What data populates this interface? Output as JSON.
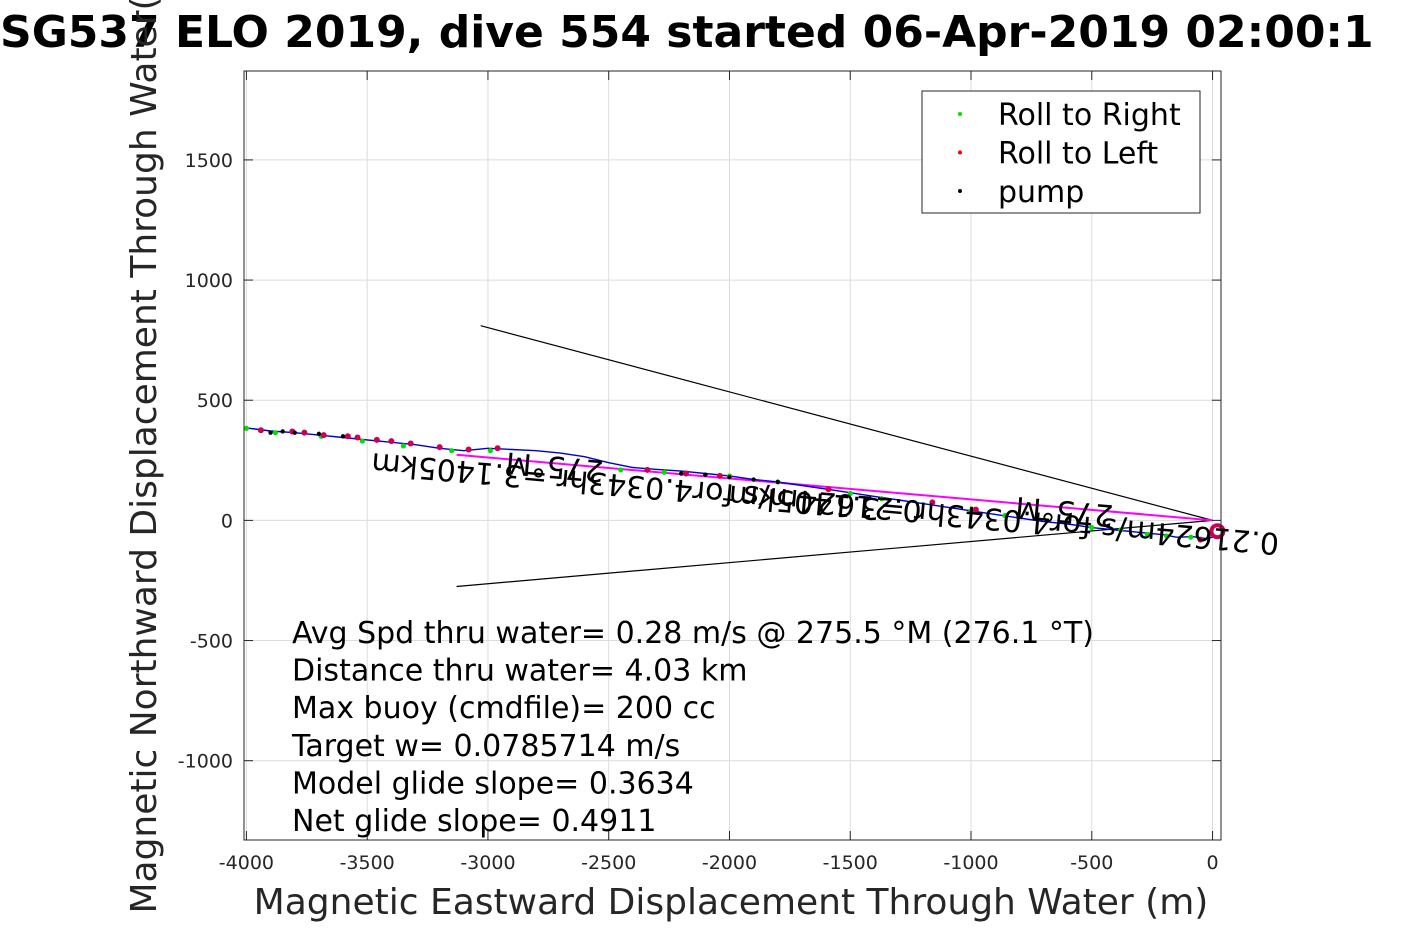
{
  "chart_data": {
    "type": "line",
    "title": "SG537 ELO 2019, dive 554 started 06-Apr-2019 02:00:1",
    "xlabel": "Magnetic Eastward Displacement Through Water (m)",
    "ylabel": "Magnetic Northward Displacement Through Water(",
    "xlim": [
      -4010,
      35
    ],
    "ylim": [
      -1330,
      1870
    ],
    "xticks": [
      -4000,
      -3500,
      -3000,
      -2500,
      -2000,
      -1500,
      -1000,
      -500,
      0
    ],
    "xtick_labels": [
      "-4000",
      "-3500",
      "-3000",
      "-2500",
      "-2000",
      "-1500",
      "-1000",
      "-500",
      "0"
    ],
    "yticks": [
      -1000,
      -500,
      0,
      500,
      1000,
      1500
    ],
    "ytick_labels": [
      "-1000",
      "-500",
      "0",
      "500",
      "1000",
      "1500"
    ],
    "grid": true,
    "legend_position": "top-right",
    "legend": [
      {
        "label": "Roll to Right",
        "color": "#00e000"
      },
      {
        "label": "Roll to Left",
        "color": "#ff0000"
      },
      {
        "label": "pump",
        "color": "#000000"
      }
    ],
    "colors": {
      "track": "#0000cc",
      "current": "#ff00ff",
      "cone": "#000000",
      "axes": "#262626",
      "grid": "#dcdcdc",
      "endpoint": "#cc0055"
    },
    "track": {
      "x": [
        0,
        -30,
        -80,
        -150,
        -200,
        -300,
        -400,
        -500,
        -600,
        -700,
        -800,
        -900,
        -1000,
        -1100,
        -1200,
        -1300,
        -1400,
        -1500,
        -1600,
        -1700,
        -1800,
        -1900,
        -2000,
        -2100,
        -2200,
        -2300,
        -2400,
        -2500,
        -2600,
        -2700,
        -2800,
        -2900,
        -3000,
        -3100,
        -3200,
        -3300,
        -3400,
        -3500,
        -3600,
        -3700,
        -3800,
        -3900,
        -4000
      ],
      "y": [
        -70,
        -75,
        -68,
        -70,
        -60,
        -50,
        -40,
        -30,
        -15,
        -5,
        10,
        25,
        40,
        55,
        70,
        85,
        100,
        115,
        130,
        145,
        160,
        170,
        185,
        195,
        205,
        212,
        220,
        240,
        265,
        280,
        290,
        295,
        300,
        290,
        300,
        315,
        325,
        335,
        345,
        355,
        365,
        372,
        385
      ]
    },
    "roll_right": {
      "x": [
        -90,
        -190,
        -270,
        -380,
        -500,
        -860,
        -1000,
        -1370,
        -1500,
        -1800,
        -2000,
        -2270,
        -2450,
        -2990,
        -3150,
        -3350,
        -3520,
        -3690,
        -3880,
        -4000
      ],
      "y": [
        -70,
        -65,
        -58,
        -40,
        -30,
        20,
        40,
        90,
        112,
        160,
        185,
        200,
        210,
        290,
        290,
        310,
        330,
        350,
        365,
        383
      ]
    },
    "roll_left": {
      "x": [
        -50,
        -980,
        -1160,
        -1590,
        -2040,
        -2180,
        -2340,
        -2960,
        -3080,
        -3200,
        -3320,
        -3400,
        -3460,
        -3540,
        -3580,
        -3680,
        -3760,
        -3810,
        -3940
      ],
      "y": [
        -80,
        45,
        75,
        130,
        185,
        195,
        210,
        300,
        295,
        305,
        320,
        330,
        335,
        345,
        350,
        355,
        365,
        370,
        375
      ]
    },
    "pump": {
      "x": [
        -1800,
        -1900,
        -2000,
        -2100,
        -2200,
        -3600,
        -3700,
        -3800,
        -3850,
        -3900
      ],
      "y": [
        160,
        170,
        180,
        190,
        195,
        350,
        360,
        365,
        370,
        365
      ]
    },
    "current_line": {
      "x": [
        -3130,
        0
      ],
      "y": [
        273,
        0
      ]
    },
    "cone_lines": [
      {
        "x": [
          -3030,
          0
        ],
        "y": [
          810,
          0
        ]
      },
      {
        "x": [
          -3130,
          0
        ],
        "y": [
          -275,
          0
        ]
      }
    ],
    "endpoint": {
      "x": 20,
      "y": -45
    },
    "annotations": [
      {
        "text": "275°M",
        "x": -2720,
        "y": 265,
        "angle": 5
      },
      {
        "text": "0.21624m/s for4.0343hr =3.1405km",
        "x": -2340,
        "y": 180,
        "angle": 5
      },
      {
        "text": "275°M",
        "x": -610,
        "y": 80,
        "angle": 5
      },
      {
        "text": "0.21624m/s for4.0343hr =3.1405km",
        "x": -860,
        "y": 45,
        "angle": 5
      }
    ],
    "stats_lines": [
      "Avg Spd thru water=  0.28 m/s @ 275.5 °M (276.1 °T)",
      "Distance thru water=  4.03 km",
      "Max buoy (cmdfile)= 200 cc",
      "Target w= 0.0785714 m/s",
      "Model glide slope= 0.3634",
      "Net glide slope= 0.4911"
    ]
  }
}
